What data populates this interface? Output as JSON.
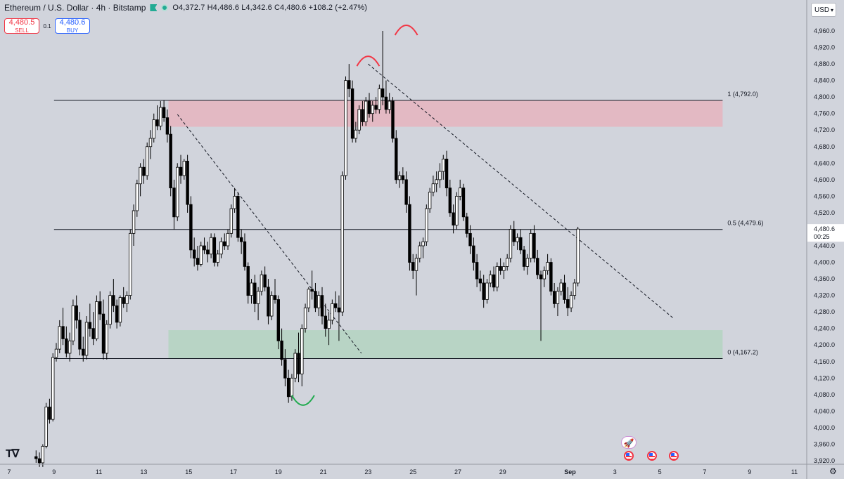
{
  "header": {
    "symbol_title": "Ethereum / U.S. Dollar · 4h · Bitstamp",
    "ohlc_text": "O4,372.7  H4,486.6  L4,342.6  C4,480.6  +108.2 (+2.47%)"
  },
  "trade_buttons": {
    "sell_price": "4,480.5",
    "sell_label": "SELL",
    "spread": "0.1",
    "buy_price": "4,480.6",
    "buy_label": "BUY"
  },
  "currency": "USD",
  "colors": {
    "background": "#d1d4dc",
    "resistance_zone": "#f2a3ae",
    "support_zone": "#9fd3ad",
    "red_arc": "#f23645",
    "green_arc": "#22ab50",
    "candle_up": "#ffffff",
    "candle_down": "#000000",
    "price_tag": "#ffffff"
  },
  "icons": [
    "flag-icon",
    "status-dot-icon",
    "chevron-down-icon",
    "tradingview-logo",
    "gear-icon",
    "us-flag-event-icon",
    "rocket-icon"
  ],
  "chart_data": {
    "type": "candlestick",
    "y_axis": {
      "min": 3900,
      "max": 5000,
      "ticks": [
        3920,
        3960,
        4000,
        4040,
        4080,
        4120,
        4160,
        4200,
        4240,
        4280,
        4320,
        4360,
        4400,
        4440,
        4480,
        4520,
        4560,
        4600,
        4640,
        4680,
        4720,
        4760,
        4800,
        4840,
        4880,
        4920,
        4960
      ],
      "tick_labels": [
        "3,920.0",
        "3,960.0",
        "4,000.0",
        "4,040.0",
        "4,080.0",
        "4,120.0",
        "4,160.0",
        "4,200.0",
        "4,240.0",
        "4,280.0",
        "4,320.0",
        "4,360.0",
        "4,400.0",
        "4,440.0",
        "4,480.0",
        "4,520.0",
        "4,560.0",
        "4,600.0",
        "4,640.0",
        "4,680.0",
        "4,720.0",
        "4,760.0",
        "4,800.0",
        "4,840.0",
        "4,880.0",
        "4,920.0",
        "4,960.0"
      ]
    },
    "x_axis": {
      "tick_labels": [
        "7",
        "9",
        "11",
        "13",
        "15",
        "17",
        "19",
        "21",
        "23",
        "25",
        "27",
        "29",
        "Sep",
        "3",
        "5",
        "7",
        "9",
        "11"
      ],
      "tick_day_index": [
        7,
        9,
        11,
        13,
        15,
        17,
        19,
        21,
        23,
        25,
        27,
        29,
        32,
        34,
        36,
        38,
        40,
        42
      ]
    },
    "fib_levels": [
      {
        "label": "1 (4,792.0)",
        "value": 4792.0
      },
      {
        "label": "0.5 (4,479.6)",
        "value": 4479.6
      },
      {
        "label": "0 (4,167.2)",
        "value": 4167.2
      }
    ],
    "zones": [
      {
        "kind": "resistance",
        "from": 4728,
        "to": 4792
      },
      {
        "kind": "support",
        "from": 4167.2,
        "to": 4236
      }
    ],
    "trendlines": [
      {
        "from_day": 14.5,
        "from_price": 4758,
        "to_day": 22.7,
        "to_price": 4180
      },
      {
        "from_day": 23.0,
        "from_price": 4880,
        "to_day": 36.6,
        "to_price": 4265
      }
    ],
    "arcs": [
      {
        "kind": "top",
        "color": "red",
        "day": 23.0,
        "price": 4885
      },
      {
        "kind": "top",
        "color": "red",
        "day": 24.7,
        "price": 4960
      },
      {
        "kind": "bottom",
        "color": "green",
        "day": 20.1,
        "price": 4068
      }
    ],
    "last_price": {
      "value": 4480.6,
      "label": "4,480.6",
      "countdown": "00:25"
    },
    "candles": [
      [
        8.2,
        3930,
        3945,
        3915,
        3925
      ],
      [
        8.35,
        3925,
        3940,
        3905,
        3915
      ],
      [
        8.5,
        3915,
        3960,
        3905,
        3955
      ],
      [
        8.65,
        3955,
        4060,
        3950,
        4050
      ],
      [
        8.8,
        4050,
        4070,
        4010,
        4020
      ],
      [
        8.95,
        4020,
        4180,
        4015,
        4170
      ],
      [
        9.1,
        4170,
        4205,
        4160,
        4190
      ],
      [
        9.25,
        4190,
        4260,
        4180,
        4245
      ],
      [
        9.4,
        4245,
        4290,
        4200,
        4215
      ],
      [
        9.55,
        4215,
        4245,
        4170,
        4180
      ],
      [
        9.7,
        4180,
        4230,
        4160,
        4210
      ],
      [
        9.85,
        4210,
        4310,
        4200,
        4295
      ],
      [
        10.0,
        4295,
        4320,
        4240,
        4260
      ],
      [
        10.15,
        4260,
        4280,
        4175,
        4190
      ],
      [
        10.3,
        4190,
        4220,
        4160,
        4175
      ],
      [
        10.45,
        4175,
        4270,
        4165,
        4255
      ],
      [
        10.6,
        4255,
        4300,
        4220,
        4240
      ],
      [
        10.75,
        4240,
        4280,
        4200,
        4215
      ],
      [
        10.9,
        4215,
        4320,
        4210,
        4305
      ],
      [
        11.05,
        4305,
        4330,
        4260,
        4275
      ],
      [
        11.2,
        4275,
        4310,
        4165,
        4180
      ],
      [
        11.35,
        4180,
        4260,
        4165,
        4250
      ],
      [
        11.5,
        4250,
        4330,
        4240,
        4320
      ],
      [
        11.65,
        4320,
        4360,
        4280,
        4295
      ],
      [
        11.8,
        4295,
        4310,
        4240,
        4255
      ],
      [
        11.95,
        4255,
        4320,
        4245,
        4315
      ],
      [
        12.1,
        4315,
        4340,
        4290,
        4300
      ],
      [
        12.25,
        4300,
        4330,
        4280,
        4320
      ],
      [
        12.4,
        4320,
        4480,
        4310,
        4470
      ],
      [
        12.55,
        4470,
        4540,
        4440,
        4525
      ],
      [
        12.7,
        4525,
        4600,
        4510,
        4590
      ],
      [
        12.85,
        4590,
        4640,
        4560,
        4630
      ],
      [
        13.0,
        4630,
        4650,
        4590,
        4610
      ],
      [
        13.15,
        4610,
        4690,
        4600,
        4680
      ],
      [
        13.3,
        4680,
        4720,
        4650,
        4700
      ],
      [
        13.45,
        4700,
        4760,
        4690,
        4745
      ],
      [
        13.6,
        4745,
        4780,
        4720,
        4730
      ],
      [
        13.75,
        4730,
        4790,
        4720,
        4775
      ],
      [
        13.9,
        4775,
        4792,
        4740,
        4750
      ],
      [
        14.05,
        4750,
        4770,
        4690,
        4710
      ],
      [
        14.2,
        4710,
        4730,
        4560,
        4580
      ],
      [
        14.35,
        4580,
        4600,
        4480,
        4510
      ],
      [
        14.5,
        4510,
        4640,
        4500,
        4630
      ],
      [
        14.65,
        4630,
        4660,
        4590,
        4610
      ],
      [
        14.8,
        4610,
        4650,
        4600,
        4645
      ],
      [
        14.95,
        4645,
        4660,
        4520,
        4540
      ],
      [
        15.1,
        4540,
        4560,
        4410,
        4430
      ],
      [
        15.25,
        4430,
        4460,
        4390,
        4410
      ],
      [
        15.4,
        4410,
        4440,
        4380,
        4395
      ],
      [
        15.55,
        4395,
        4450,
        4390,
        4440
      ],
      [
        15.7,
        4440,
        4460,
        4420,
        4430
      ],
      [
        15.85,
        4430,
        4450,
        4400,
        4420
      ],
      [
        16.0,
        4420,
        4470,
        4410,
        4460
      ],
      [
        16.15,
        4460,
        4470,
        4390,
        4400
      ],
      [
        16.3,
        4400,
        4430,
        4390,
        4420
      ],
      [
        16.45,
        4420,
        4460,
        4410,
        4450
      ],
      [
        16.6,
        4450,
        4470,
        4430,
        4440
      ],
      [
        16.75,
        4440,
        4480,
        4430,
        4470
      ],
      [
        16.9,
        4470,
        4540,
        4460,
        4530
      ],
      [
        17.05,
        4530,
        4580,
        4520,
        4560
      ],
      [
        17.2,
        4560,
        4570,
        4450,
        4460
      ],
      [
        17.35,
        4460,
        4480,
        4420,
        4450
      ],
      [
        17.5,
        4450,
        4470,
        4380,
        4390
      ],
      [
        17.65,
        4390,
        4400,
        4300,
        4320
      ],
      [
        17.8,
        4320,
        4360,
        4300,
        4350
      ],
      [
        17.95,
        4350,
        4370,
        4280,
        4300
      ],
      [
        18.1,
        4300,
        4340,
        4260,
        4330
      ],
      [
        18.25,
        4330,
        4380,
        4320,
        4370
      ],
      [
        18.4,
        4370,
        4390,
        4330,
        4340
      ],
      [
        18.55,
        4340,
        4360,
        4250,
        4270
      ],
      [
        18.7,
        4270,
        4330,
        4260,
        4320
      ],
      [
        18.85,
        4320,
        4360,
        4300,
        4310
      ],
      [
        19.0,
        4310,
        4320,
        4190,
        4210
      ],
      [
        19.15,
        4210,
        4240,
        4150,
        4165
      ],
      [
        19.3,
        4165,
        4190,
        4100,
        4120
      ],
      [
        19.45,
        4120,
        4140,
        4060,
        4075
      ],
      [
        19.6,
        4075,
        4130,
        4065,
        4120
      ],
      [
        19.75,
        4120,
        4190,
        4110,
        4180
      ],
      [
        19.9,
        4180,
        4230,
        4110,
        4130
      ],
      [
        20.05,
        4130,
        4250,
        4100,
        4240
      ],
      [
        20.2,
        4240,
        4300,
        4230,
        4290
      ],
      [
        20.35,
        4290,
        4340,
        4280,
        4335
      ],
      [
        20.5,
        4335,
        4380,
        4310,
        4330
      ],
      [
        20.65,
        4330,
        4350,
        4280,
        4290
      ],
      [
        20.8,
        4290,
        4330,
        4270,
        4320
      ],
      [
        20.95,
        4320,
        4340,
        4250,
        4270
      ],
      [
        21.1,
        4270,
        4300,
        4220,
        4240
      ],
      [
        21.25,
        4240,
        4280,
        4200,
        4260
      ],
      [
        21.4,
        4260,
        4310,
        4250,
        4300
      ],
      [
        21.55,
        4300,
        4330,
        4280,
        4290
      ],
      [
        21.7,
        4290,
        4320,
        4210,
        4280
      ],
      [
        21.85,
        4280,
        4620,
        4270,
        4610
      ],
      [
        22.0,
        4610,
        4850,
        4600,
        4840
      ],
      [
        22.15,
        4840,
        4880,
        4800,
        4820
      ],
      [
        22.3,
        4820,
        4840,
        4690,
        4700
      ],
      [
        22.45,
        4700,
        4740,
        4690,
        4720
      ],
      [
        22.6,
        4720,
        4780,
        4710,
        4770
      ],
      [
        22.75,
        4770,
        4790,
        4730,
        4740
      ],
      [
        22.9,
        4740,
        4800,
        4730,
        4790
      ],
      [
        23.05,
        4790,
        4810,
        4750,
        4760
      ],
      [
        23.2,
        4760,
        4790,
        4740,
        4780
      ],
      [
        23.35,
        4780,
        4800,
        4760,
        4770
      ],
      [
        23.5,
        4770,
        4830,
        4760,
        4820
      ],
      [
        23.65,
        4820,
        4960,
        4780,
        4800
      ],
      [
        23.8,
        4800,
        4840,
        4760,
        4770
      ],
      [
        23.95,
        4770,
        4810,
        4760,
        4790
      ],
      [
        24.1,
        4790,
        4800,
        4690,
        4700
      ],
      [
        24.25,
        4700,
        4720,
        4590,
        4600
      ],
      [
        24.4,
        4600,
        4620,
        4580,
        4610
      ],
      [
        24.55,
        4610,
        4630,
        4590,
        4600
      ],
      [
        24.7,
        4600,
        4620,
        4520,
        4540
      ],
      [
        24.85,
        4540,
        4560,
        4380,
        4400
      ],
      [
        25.0,
        4400,
        4420,
        4360,
        4380
      ],
      [
        25.15,
        4380,
        4420,
        4320,
        4410
      ],
      [
        25.3,
        4410,
        4450,
        4400,
        4440
      ],
      [
        25.45,
        4440,
        4460,
        4410,
        4450
      ],
      [
        25.6,
        4450,
        4540,
        4440,
        4530
      ],
      [
        25.75,
        4530,
        4580,
        4520,
        4570
      ],
      [
        25.9,
        4570,
        4610,
        4560,
        4590
      ],
      [
        26.05,
        4590,
        4620,
        4570,
        4600
      ],
      [
        26.2,
        4600,
        4640,
        4580,
        4620
      ],
      [
        26.35,
        4620,
        4660,
        4600,
        4650
      ],
      [
        26.5,
        4650,
        4670,
        4560,
        4580
      ],
      [
        26.65,
        4580,
        4600,
        4510,
        4520
      ],
      [
        26.8,
        4520,
        4540,
        4470,
        4490
      ],
      [
        26.95,
        4490,
        4570,
        4480,
        4560
      ],
      [
        27.1,
        4560,
        4600,
        4550,
        4580
      ],
      [
        27.25,
        4580,
        4590,
        4500,
        4510
      ],
      [
        27.4,
        4510,
        4520,
        4460,
        4470
      ],
      [
        27.55,
        4470,
        4490,
        4420,
        4440
      ],
      [
        27.7,
        4440,
        4460,
        4380,
        4400
      ],
      [
        27.85,
        4400,
        4420,
        4340,
        4360
      ],
      [
        28.0,
        4360,
        4380,
        4330,
        4350
      ],
      [
        28.15,
        4350,
        4370,
        4290,
        4310
      ],
      [
        28.3,
        4310,
        4360,
        4300,
        4350
      ],
      [
        28.45,
        4350,
        4380,
        4340,
        4370
      ],
      [
        28.6,
        4370,
        4390,
        4330,
        4340
      ],
      [
        28.75,
        4340,
        4400,
        4330,
        4390
      ],
      [
        28.9,
        4390,
        4410,
        4370,
        4380
      ],
      [
        29.05,
        4380,
        4400,
        4360,
        4390
      ],
      [
        29.2,
        4390,
        4420,
        4380,
        4410
      ],
      [
        29.35,
        4410,
        4490,
        4400,
        4480
      ],
      [
        29.5,
        4480,
        4500,
        4440,
        4450
      ],
      [
        29.65,
        4450,
        4470,
        4430,
        4460
      ],
      [
        29.8,
        4460,
        4480,
        4420,
        4430
      ],
      [
        29.95,
        4430,
        4440,
        4380,
        4390
      ],
      [
        30.1,
        4390,
        4420,
        4370,
        4410
      ],
      [
        30.25,
        4410,
        4480,
        4400,
        4470
      ],
      [
        30.4,
        4470,
        4490,
        4400,
        4410
      ],
      [
        30.55,
        4410,
        4430,
        4360,
        4370
      ],
      [
        30.7,
        4370,
        4380,
        4210,
        4360
      ],
      [
        30.85,
        4360,
        4390,
        4340,
        4380
      ],
      [
        31.0,
        4380,
        4420,
        4370,
        4400
      ],
      [
        31.15,
        4400,
        4410,
        4320,
        4330
      ],
      [
        31.3,
        4330,
        4350,
        4290,
        4300
      ],
      [
        31.45,
        4300,
        4340,
        4270,
        4330
      ],
      [
        31.6,
        4330,
        4360,
        4320,
        4350
      ],
      [
        31.75,
        4350,
        4370,
        4300,
        4310
      ],
      [
        31.9,
        4310,
        4340,
        4270,
        4290
      ],
      [
        32.05,
        4290,
        4330,
        4280,
        4320
      ],
      [
        32.2,
        4320,
        4360,
        4310,
        4350
      ],
      [
        32.35,
        4350,
        4486,
        4342,
        4480.6
      ]
    ]
  }
}
